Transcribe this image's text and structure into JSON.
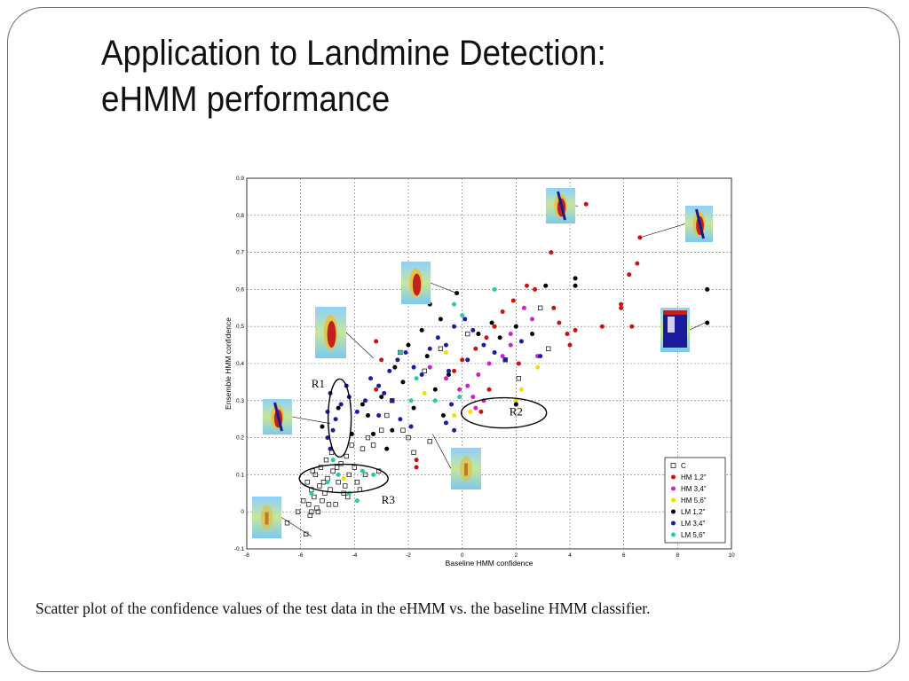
{
  "slide": {
    "title_line1": "Application to Landmine Detection:",
    "title_line2": "eHMM performance",
    "caption": "Scatter plot of the confidence values of the test data in the eHMM vs. the baseline HMM classifier."
  },
  "chart_data": {
    "type": "scatter",
    "title": "",
    "xlabel": "Baseline HMM confidence",
    "ylabel": "Ensemble HMM confidence",
    "xlim": [
      -8,
      10
    ],
    "ylim": [
      -0.1,
      0.9
    ],
    "xticks": [
      "-8",
      "-6",
      "-4",
      "-2",
      "0",
      "2",
      "4",
      "6",
      "8",
      "10"
    ],
    "yticks": [
      "-0.1",
      "0",
      "0.1",
      "0.2",
      "0.3",
      "0.4",
      "0.5",
      "0.6",
      "0.7",
      "0.8",
      "0.9"
    ],
    "grid": true,
    "legend_position": "bottom-right",
    "series": [
      {
        "name": "C",
        "color": "#000000",
        "marker": "square-open",
        "points": [
          [
            -5.8,
            -0.06
          ],
          [
            -5.6,
            0.0
          ],
          [
            -5.7,
            0.02
          ],
          [
            -5.5,
            0.04
          ],
          [
            -5.4,
            0.01
          ],
          [
            -5.6,
            0.06
          ],
          [
            -5.3,
            0.07
          ],
          [
            -5.2,
            0.03
          ],
          [
            -5.1,
            0.05
          ],
          [
            -5.0,
            0.09
          ],
          [
            -4.9,
            0.06
          ],
          [
            -4.8,
            0.11
          ],
          [
            -4.6,
            0.08
          ],
          [
            -4.5,
            0.13
          ],
          [
            -4.4,
            0.05
          ],
          [
            -4.3,
            0.15
          ],
          [
            -4.2,
            0.1
          ],
          [
            -4.0,
            0.12
          ],
          [
            -3.9,
            0.08
          ],
          [
            -3.8,
            0.06
          ],
          [
            -5.9,
            0.03
          ],
          [
            -5.75,
            0.08
          ],
          [
            -5.45,
            0.1
          ],
          [
            -5.25,
            0.12
          ],
          [
            -5.05,
            0.14
          ],
          [
            -4.85,
            0.16
          ],
          [
            -4.7,
            0.02
          ],
          [
            -4.25,
            0.04
          ],
          [
            -3.7,
            0.17
          ],
          [
            -3.5,
            0.2
          ],
          [
            -3.3,
            0.18
          ],
          [
            -3.0,
            0.22
          ],
          [
            -2.8,
            0.26
          ],
          [
            -2.6,
            0.3
          ],
          [
            -2.2,
            0.22
          ],
          [
            -2.0,
            0.2
          ],
          [
            -1.8,
            0.16
          ],
          [
            -1.2,
            0.19
          ],
          [
            -2.3,
            0.43
          ],
          [
            -1.4,
            0.38
          ],
          [
            -3.1,
            0.11
          ],
          [
            -4.1,
            0.18
          ],
          [
            -5.65,
            -0.01
          ],
          [
            -5.35,
            0.0
          ],
          [
            -4.95,
            0.02
          ],
          [
            -4.65,
            0.12
          ],
          [
            -4.35,
            0.07
          ],
          [
            -3.6,
            0.1
          ],
          [
            -5.55,
            0.11
          ],
          [
            -5.15,
            0.08
          ],
          [
            2.1,
            0.36
          ],
          [
            2.9,
            0.55
          ],
          [
            3.2,
            0.44
          ],
          [
            0.2,
            0.48
          ],
          [
            -0.8,
            0.44
          ],
          [
            1.6,
            0.41
          ],
          [
            -6.5,
            -0.03
          ],
          [
            -6.1,
            0.0
          ]
        ]
      },
      {
        "name": "HM 1,2\"",
        "color": "#cc1111",
        "marker": "circle",
        "points": [
          [
            4.6,
            0.83
          ],
          [
            5.2,
            0.5
          ],
          [
            3.3,
            0.7
          ],
          [
            6.6,
            0.74
          ],
          [
            6.2,
            0.64
          ],
          [
            6.5,
            0.67
          ],
          [
            5.9,
            0.56
          ],
          [
            5.9,
            0.55
          ],
          [
            6.3,
            0.5
          ],
          [
            4.2,
            0.49
          ],
          [
            3.9,
            0.48
          ],
          [
            4.0,
            0.45
          ],
          [
            3.6,
            0.51
          ],
          [
            3.4,
            0.55
          ],
          [
            2.7,
            0.6
          ],
          [
            2.4,
            0.61
          ],
          [
            1.9,
            0.57
          ],
          [
            1.5,
            0.54
          ],
          [
            1.2,
            0.5
          ],
          [
            0.9,
            0.47
          ],
          [
            0.5,
            0.44
          ],
          [
            0.0,
            0.41
          ],
          [
            -0.3,
            0.38
          ],
          [
            1.0,
            0.33
          ],
          [
            0.7,
            0.27
          ],
          [
            -1.7,
            0.14
          ],
          [
            -1.7,
            0.12
          ],
          [
            -3.2,
            0.33
          ],
          [
            -3.0,
            0.41
          ],
          [
            -3.2,
            0.46
          ],
          [
            2.1,
            0.4
          ]
        ]
      },
      {
        "name": "HM 3,4\"",
        "color": "#cc22cc",
        "marker": "circle",
        "points": [
          [
            2.3,
            0.55
          ],
          [
            2.6,
            0.52
          ],
          [
            1.8,
            0.48
          ],
          [
            1.5,
            0.42
          ],
          [
            1.0,
            0.4
          ],
          [
            0.6,
            0.37
          ],
          [
            0.2,
            0.34
          ],
          [
            0.4,
            0.31
          ],
          [
            0.8,
            0.3
          ],
          [
            -0.1,
            0.33
          ],
          [
            -0.6,
            0.36
          ],
          [
            -1.2,
            0.39
          ],
          [
            1.8,
            0.45
          ],
          [
            2.8,
            0.42
          ],
          [
            0.5,
            0.28
          ]
        ]
      },
      {
        "name": "HM 5,6\"",
        "color": "#f0e000",
        "marker": "circle",
        "points": [
          [
            2.0,
            0.3
          ],
          [
            2.2,
            0.33
          ],
          [
            0.3,
            0.27
          ],
          [
            -0.3,
            0.26
          ],
          [
            2.8,
            0.39
          ],
          [
            -0.6,
            0.43
          ],
          [
            -4.4,
            0.09
          ],
          [
            -1.4,
            0.32
          ]
        ]
      },
      {
        "name": "LM 1,2\"",
        "color": "#000000",
        "marker": "circle",
        "points": [
          [
            9.1,
            0.6
          ],
          [
            9.1,
            0.51
          ],
          [
            4.2,
            0.63
          ],
          [
            4.2,
            0.61
          ],
          [
            3.1,
            0.61
          ],
          [
            -0.2,
            0.59
          ],
          [
            -0.8,
            0.52
          ],
          [
            -1.5,
            0.49
          ],
          [
            -2.0,
            0.45
          ],
          [
            -2.5,
            0.39
          ],
          [
            -2.2,
            0.35
          ],
          [
            -3.0,
            0.31
          ],
          [
            -3.5,
            0.26
          ],
          [
            -3.3,
            0.21
          ],
          [
            -3.7,
            0.29
          ],
          [
            -1.0,
            0.33
          ],
          [
            -0.5,
            0.37
          ],
          [
            2.6,
            0.48
          ],
          [
            2.0,
            0.5
          ],
          [
            1.4,
            0.47
          ],
          [
            1.1,
            0.51
          ],
          [
            0.6,
            0.48
          ],
          [
            -1.8,
            0.28
          ],
          [
            -2.6,
            0.22
          ],
          [
            -4.1,
            0.21
          ],
          [
            -4.6,
            0.28
          ],
          [
            -5.2,
            0.23
          ],
          [
            -1.3,
            0.42
          ],
          [
            -0.7,
            0.26
          ],
          [
            -2.8,
            0.17
          ],
          [
            -1.2,
            0.56
          ],
          [
            2.0,
            0.29
          ]
        ]
      },
      {
        "name": "LM 3,4\"",
        "color": "#1a1aa8",
        "marker": "circle",
        "points": [
          [
            -4.9,
            0.32
          ],
          [
            -5.0,
            0.27
          ],
          [
            -4.8,
            0.22
          ],
          [
            -5.0,
            0.2
          ],
          [
            -4.7,
            0.25
          ],
          [
            -4.9,
            0.17
          ],
          [
            -4.5,
            0.29
          ],
          [
            -4.3,
            0.34
          ],
          [
            -4.2,
            0.31
          ],
          [
            -3.9,
            0.27
          ],
          [
            -3.6,
            0.3
          ],
          [
            -3.4,
            0.36
          ],
          [
            -3.1,
            0.34
          ],
          [
            -2.9,
            0.32
          ],
          [
            -2.7,
            0.38
          ],
          [
            -2.4,
            0.41
          ],
          [
            -2.1,
            0.43
          ],
          [
            -1.8,
            0.39
          ],
          [
            -1.5,
            0.37
          ],
          [
            -1.2,
            0.44
          ],
          [
            -0.9,
            0.47
          ],
          [
            -0.6,
            0.45
          ],
          [
            -0.3,
            0.5
          ],
          [
            0.1,
            0.52
          ],
          [
            0.4,
            0.49
          ],
          [
            0.8,
            0.45
          ],
          [
            1.2,
            0.43
          ],
          [
            1.6,
            0.41
          ],
          [
            2.2,
            0.46
          ],
          [
            2.9,
            0.42
          ],
          [
            -2.3,
            0.25
          ],
          [
            -1.9,
            0.23
          ],
          [
            -0.6,
            0.24
          ],
          [
            -0.4,
            0.29
          ],
          [
            -2.6,
            0.3
          ],
          [
            -3.1,
            0.26
          ],
          [
            -0.3,
            0.22
          ],
          [
            -0.5,
            0.38
          ],
          [
            0.2,
            0.41
          ]
        ]
      },
      {
        "name": "LM 5,6\"",
        "color": "#22ccaa",
        "marker": "circle",
        "points": [
          [
            1.2,
            0.6
          ],
          [
            -0.3,
            0.56
          ],
          [
            0.0,
            0.53
          ],
          [
            -2.3,
            0.43
          ],
          [
            -1.7,
            0.36
          ],
          [
            -1.9,
            0.3
          ],
          [
            -1.0,
            0.3
          ],
          [
            -4.8,
            0.14
          ],
          [
            -4.6,
            0.1
          ],
          [
            -5.0,
            0.08
          ],
          [
            -4.2,
            0.05
          ],
          [
            -3.9,
            0.03
          ],
          [
            -3.7,
            0.11
          ],
          [
            -3.3,
            0.1
          ],
          [
            -5.6,
            0.05
          ],
          [
            -0.1,
            0.31
          ]
        ]
      }
    ],
    "annotations": [
      {
        "label": "R1"
      },
      {
        "label": "R2"
      },
      {
        "label": "R3"
      }
    ]
  }
}
